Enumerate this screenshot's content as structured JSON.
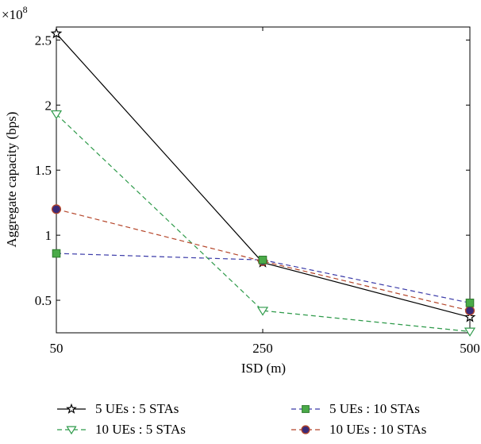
{
  "chart_data": {
    "type": "line",
    "title": "",
    "xlabel": "ISD (m)",
    "ylabel": "Aggregate capacity (bps)",
    "y_multiplier_label": "×10",
    "y_multiplier_exponent": "8",
    "x": [
      50,
      250,
      500
    ],
    "x_tick_labels": [
      "50",
      "250",
      "500"
    ],
    "y_ticks": [
      0.5,
      1,
      1.5,
      2,
      2.5
    ],
    "y_tick_labels": [
      "0.5",
      "1",
      "1.5",
      "2",
      "2.5"
    ],
    "xlim": [
      50,
      500
    ],
    "ylim": [
      0.25,
      2.6
    ],
    "grid": false,
    "legend_position": "bottom",
    "series": [
      {
        "name": "5 UEs : 5 STAs",
        "values": [
          2.55,
          0.79,
          0.37
        ],
        "color": "#000000",
        "dash": "solid",
        "marker": "star",
        "marker_fill": "#ffffff",
        "marker_stroke": "#000000"
      },
      {
        "name": "5 UEs : 10 STAs",
        "values": [
          0.86,
          0.81,
          0.48
        ],
        "color": "#3a3aa8",
        "dash": "dashed",
        "marker": "square",
        "marker_fill": "#4aaa48",
        "marker_stroke": "#2d7a2d"
      },
      {
        "name": "10 UEs : 5 STAs",
        "values": [
          1.93,
          0.42,
          0.26
        ],
        "color": "#2e9a4a",
        "dash": "dashed",
        "marker": "triangle-down",
        "marker_fill": "#ffffff",
        "marker_stroke": "#2e9a4a"
      },
      {
        "name": "10 UEs : 10 STAs",
        "values": [
          1.2,
          0.8,
          0.42
        ],
        "color": "#b5462a",
        "dash": "dashed",
        "marker": "circle",
        "marker_fill": "#3a2a78",
        "marker_stroke": "#b5462a"
      }
    ]
  }
}
